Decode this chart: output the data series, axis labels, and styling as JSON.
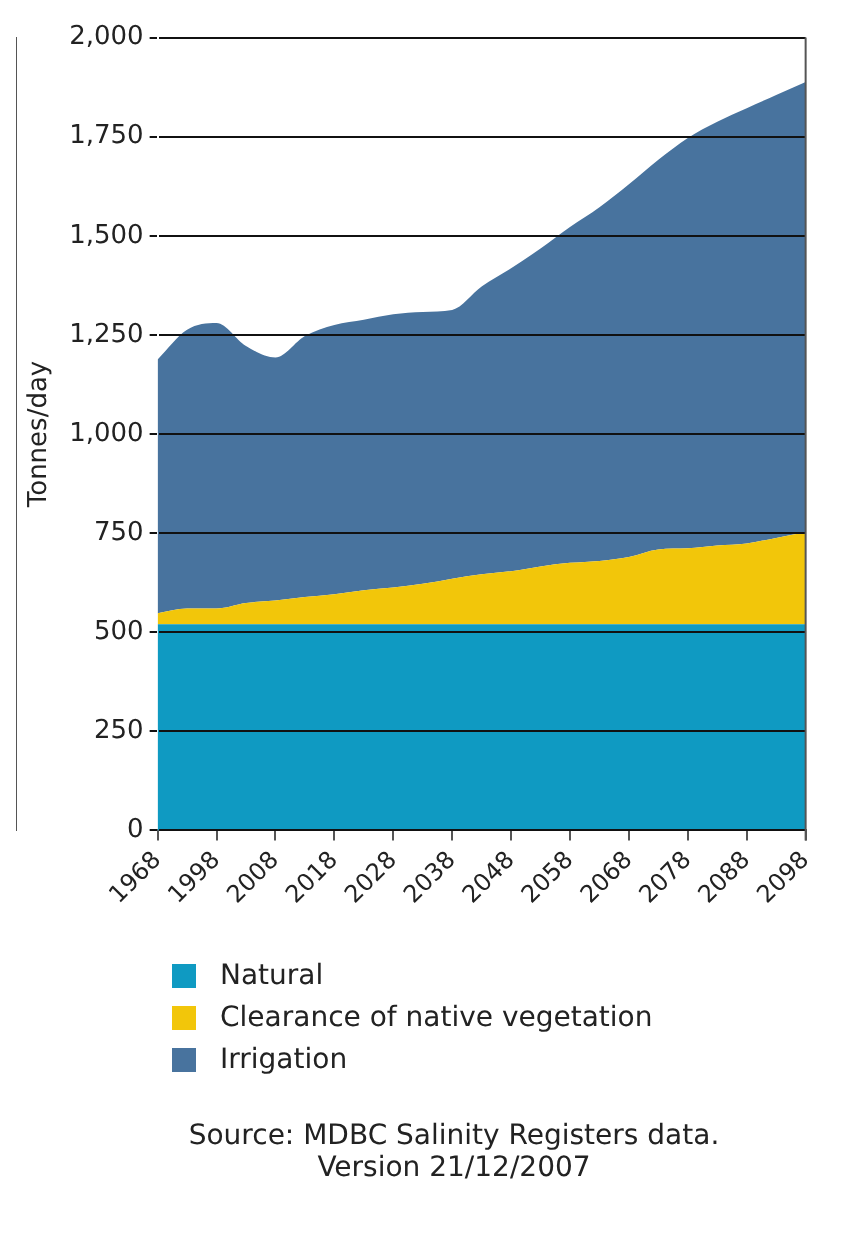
{
  "chart_data": {
    "type": "area",
    "stacked": true,
    "ylabel": "Tonnes/day",
    "categories": [
      "1968",
      null,
      "1998",
      null,
      "2008",
      null,
      "2018",
      null,
      "2028",
      null,
      "2038",
      null,
      "2048",
      null,
      "2058",
      null,
      "2068",
      null,
      "2078",
      null,
      "2088",
      null,
      "2098"
    ],
    "series": [
      {
        "name": "Natural",
        "color": "#0f9ac2",
        "values": [
          520,
          520,
          520,
          520,
          520,
          520,
          520,
          520,
          520,
          520,
          520,
          520,
          520,
          520,
          520,
          520,
          520,
          520,
          520,
          520,
          520,
          520,
          520
        ]
      },
      {
        "name": "Clearance of native vegetation",
        "color": "#f2c60a",
        "values": [
          28,
          40,
          40,
          54,
          60,
          69,
          76,
          86,
          93,
          102,
          115,
          126,
          134,
          146,
          155,
          160,
          170,
          189,
          192,
          199,
          204,
          218,
          232
        ]
      },
      {
        "name": "Irrigation",
        "color": "#48739e",
        "values": [
          640,
          703,
          720,
          648,
          613,
          658,
          679,
          682,
          689,
          686,
          678,
          726,
          764,
          802,
          847,
          892,
          940,
          983,
          1035,
          1069,
          1098,
          1117,
          1136
        ]
      }
    ],
    "ylim": [
      0,
      2000
    ],
    "yticks": [
      {
        "value": 0,
        "label": "0"
      },
      {
        "value": 250,
        "label": "250"
      },
      {
        "value": 500,
        "label": "500"
      },
      {
        "value": 750,
        "label": "750"
      },
      {
        "value": 1000,
        "label": "1,000"
      },
      {
        "value": 1250,
        "label": "1,250"
      },
      {
        "value": 1500,
        "label": "1,500"
      },
      {
        "value": 1750,
        "label": "1,750"
      },
      {
        "value": 2000,
        "label": "2,000"
      }
    ],
    "grid": "y",
    "legend": "bottom",
    "annotations": [
      "Source: MDBC Salinity Registers data.",
      "Version 21/12/2007"
    ]
  }
}
